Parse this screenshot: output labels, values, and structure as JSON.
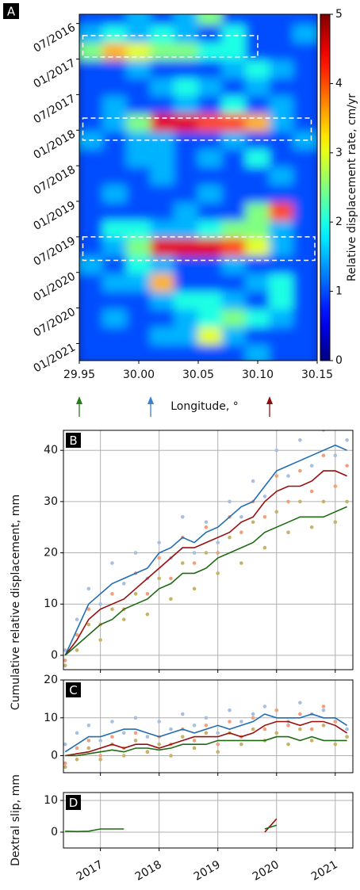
{
  "chart_data": [
    {
      "type": "heatmap",
      "panel_label": "A",
      "xlabel": "Longitude, °",
      "y_inverted": true,
      "xlim": [
        29.95,
        30.15
      ],
      "xticks": [
        29.95,
        {
          "value": 30,
          "label": "30.00"
        },
        30.05,
        {
          "value": 30.1,
          "label": "30.10"
        },
        30.15
      ],
      "ylim": [
        2016.37,
        2021.24
      ],
      "yticks": [
        {
          "value": 2016.5,
          "label": "07/2016"
        },
        {
          "value": 2017,
          "label": "01/2017"
        },
        {
          "value": 2017.5,
          "label": "07/2017"
        },
        {
          "value": 2018,
          "label": "01/2018"
        },
        {
          "value": 2018.5,
          "label": "07/2018"
        },
        {
          "value": 2019,
          "label": "01/2019"
        },
        {
          "value": 2019.5,
          "label": "07/2019"
        },
        {
          "value": 2020,
          "label": "01/2020"
        },
        {
          "value": 2020.5,
          "label": "07/2020"
        },
        {
          "value": 2021,
          "label": "01/2021"
        }
      ],
      "x": [
        29.96,
        29.98,
        30.0,
        30.02,
        30.04,
        30.06,
        30.08,
        30.1,
        30.12,
        30.14
      ],
      "y": [
        2016.4,
        2016.65,
        2016.9,
        2017.15,
        2017.4,
        2017.65,
        2017.9,
        2018.15,
        2018.4,
        2018.65,
        2018.9,
        2019.15,
        2019.4,
        2019.65,
        2019.9,
        2020.15,
        2020.4,
        2020.65,
        2020.9,
        2021.15
      ],
      "z": [
        [
          1,
          1,
          1.5,
          1,
          1.5,
          2.5,
          1,
          1,
          1,
          1
        ],
        [
          1.5,
          2,
          1.5,
          2,
          1.5,
          1,
          2,
          1,
          1,
          1.5
        ],
        [
          2.5,
          3.5,
          3,
          2.5,
          2.5,
          2,
          2,
          1,
          1,
          1
        ],
        [
          1,
          1,
          1.5,
          1,
          1,
          1,
          1.5,
          2,
          1.5,
          1
        ],
        [
          1,
          1,
          1,
          1.5,
          2,
          1.5,
          1,
          1.5,
          1,
          1
        ],
        [
          1,
          1.5,
          1,
          1,
          1.5,
          1,
          2,
          1,
          1.5,
          1
        ],
        [
          1,
          1.5,
          2.5,
          4.5,
          4.5,
          4,
          4,
          3.5,
          1.5,
          1
        ],
        [
          1.5,
          1,
          1.5,
          1.5,
          1,
          1,
          1.5,
          1,
          1,
          1.5
        ],
        [
          1,
          1,
          1.5,
          1.5,
          1,
          1.5,
          1,
          2,
          1,
          1
        ],
        [
          1,
          1,
          1,
          1.5,
          1,
          1,
          1,
          1,
          1.5,
          1
        ],
        [
          1,
          1.5,
          1,
          1,
          1,
          1.5,
          1,
          1,
          1,
          1
        ],
        [
          1,
          1,
          1,
          1,
          1.5,
          1,
          1,
          2.5,
          4,
          1
        ],
        [
          1,
          2,
          2,
          1.5,
          1.5,
          2,
          2.5,
          2.5,
          1.5,
          1
        ],
        [
          1,
          1.5,
          2.5,
          4.5,
          4.5,
          4.5,
          4,
          3,
          1.5,
          1
        ],
        [
          1.5,
          1,
          2,
          1.5,
          1,
          1,
          1.5,
          1,
          1,
          1
        ],
        [
          1,
          1.5,
          1.5,
          3.5,
          1,
          1,
          1,
          1.5,
          2,
          1
        ],
        [
          1,
          1,
          1,
          1.5,
          2,
          2,
          1.5,
          1,
          2,
          1
        ],
        [
          1,
          1.5,
          1,
          1,
          1.5,
          2,
          2.5,
          2,
          1.5,
          1
        ],
        [
          1,
          1,
          1,
          1.5,
          1.5,
          3,
          1.5,
          1,
          1,
          1
        ],
        [
          1,
          1,
          1,
          1,
          1,
          1,
          1,
          1.5,
          1,
          1
        ]
      ],
      "colorbar": {
        "label": "Relative displacement rate, cm/yr",
        "lim": [
          0,
          5
        ],
        "ticks": [
          0,
          1,
          2,
          3,
          4,
          5
        ]
      },
      "boxes": [
        {
          "xlim": [
            29.953,
            30.1
          ],
          "ylim": [
            2016.67,
            2016.97
          ]
        },
        {
          "xlim": [
            29.953,
            30.145
          ],
          "ylim": [
            2017.83,
            2018.14
          ]
        },
        {
          "xlim": [
            29.953,
            30.148
          ],
          "ylim": [
            2019.5,
            2019.83
          ]
        }
      ],
      "arrows": [
        {
          "x": 29.95,
          "color": "#2a7a1e"
        },
        {
          "x": 30.01,
          "color": "#3a7fd0"
        },
        {
          "x": 30.11,
          "color": "#8b1010"
        }
      ]
    },
    {
      "type": "line",
      "panel_label": "B",
      "ylabel": "Cumulative relative displacement, mm",
      "grid": true,
      "show_xtick_labels": false,
      "xlim": [
        2016.37,
        2021.3
      ],
      "xticks": [
        2017,
        2018,
        2019,
        2020,
        2021
      ],
      "ylim": [
        -2.8,
        43.9
      ],
      "yticks": [
        0,
        10,
        20,
        30,
        40
      ],
      "x": [
        2016.4,
        2016.6,
        2016.8,
        2017.0,
        2017.2,
        2017.4,
        2017.6,
        2017.8,
        2018.0,
        2018.2,
        2018.4,
        2018.6,
        2018.8,
        2019.0,
        2019.2,
        2019.4,
        2019.6,
        2019.8,
        2020.0,
        2020.2,
        2020.4,
        2020.6,
        2020.8,
        2021.0,
        2021.2
      ],
      "series": [
        {
          "style": "points",
          "color": "#a9bfe0",
          "values": [
            1,
            7,
            13,
            10,
            18,
            14,
            20,
            15,
            22,
            19,
            27,
            20,
            26,
            22,
            30,
            27,
            34,
            31,
            40,
            35,
            42,
            37,
            44,
            39,
            42
          ]
        },
        {
          "style": "points",
          "color": "#f2a07b",
          "values": [
            -1,
            4,
            9,
            6,
            12,
            9,
            16,
            12,
            19,
            15,
            23,
            18,
            25,
            20,
            27,
            24,
            30,
            27,
            35,
            30,
            36,
            32,
            39,
            33,
            37
          ]
        },
        {
          "style": "points",
          "color": "#c8b26a",
          "values": [
            -2,
            1,
            6,
            3,
            9,
            7,
            12,
            8,
            15,
            11,
            18,
            13,
            20,
            16,
            23,
            18,
            26,
            21,
            28,
            24,
            30,
            25,
            30,
            26,
            30
          ]
        },
        {
          "style": "line",
          "color": "#1f6db5",
          "values": [
            0,
            5,
            10,
            12,
            14,
            15,
            16,
            17,
            20,
            21,
            23,
            22,
            24,
            25,
            27,
            29,
            30,
            33,
            36,
            37,
            38,
            39,
            40,
            41,
            40
          ]
        },
        {
          "style": "line",
          "color": "#9b0d0d",
          "values": [
            0,
            3,
            7,
            9,
            10,
            11,
            13,
            15,
            17,
            19,
            21,
            21,
            22,
            23,
            24,
            26,
            27,
            30,
            32,
            33,
            33,
            34,
            36,
            36,
            35
          ]
        },
        {
          "style": "line",
          "color": "#1e6b14",
          "values": [
            0,
            2,
            4,
            6,
            7,
            9,
            10,
            11,
            13,
            14,
            16,
            16,
            17,
            19,
            20,
            21,
            22,
            24,
            25,
            26,
            27,
            27,
            27,
            28,
            29
          ]
        }
      ]
    },
    {
      "type": "line",
      "panel_label": "C",
      "grid": true,
      "show_xtick_labels": false,
      "xlim": [
        2016.37,
        2021.3
      ],
      "xticks": [
        2017,
        2018,
        2019,
        2020,
        2021
      ],
      "ylim": [
        -4.5,
        20
      ],
      "yticks": [
        0,
        10,
        20
      ],
      "x": [
        2016.4,
        2016.6,
        2016.8,
        2017.0,
        2017.2,
        2017.4,
        2017.6,
        2017.8,
        2018.0,
        2018.2,
        2018.4,
        2018.6,
        2018.8,
        2019.0,
        2019.2,
        2019.4,
        2019.6,
        2019.8,
        2020.0,
        2020.2,
        2020.4,
        2020.6,
        2020.8,
        2021.0,
        2021.2
      ],
      "series": [
        {
          "style": "points",
          "color": "#a9bfe0",
          "values": [
            3,
            6,
            8,
            4,
            9,
            6,
            10,
            5,
            9,
            7,
            11,
            8,
            10,
            6,
            12,
            9,
            11,
            13,
            12,
            9,
            14,
            11,
            12,
            9,
            7
          ]
        },
        {
          "style": "points",
          "color": "#f2a07b",
          "values": [
            -2,
            2,
            4,
            0,
            5,
            2,
            6,
            1,
            5,
            3,
            7,
            4,
            8,
            3,
            9,
            5,
            10,
            7,
            12,
            8,
            11,
            7,
            13,
            9,
            5
          ]
        },
        {
          "style": "points",
          "color": "#c8b26a",
          "values": [
            -3,
            -1,
            2,
            -1,
            3,
            0,
            4,
            1,
            3,
            0,
            5,
            2,
            6,
            1,
            6,
            3,
            7,
            4,
            6,
            3,
            7,
            4,
            8,
            3,
            5
          ]
        },
        {
          "style": "line",
          "color": "#1f6db5",
          "values": [
            1,
            3,
            5,
            5,
            6,
            7,
            7,
            6,
            5,
            6,
            7,
            6,
            7,
            8,
            7,
            8,
            9,
            11,
            10,
            10,
            10,
            11,
            10,
            10,
            8
          ]
        },
        {
          "style": "line",
          "color": "#9b0d0d",
          "values": [
            0,
            0.5,
            1,
            2,
            3,
            2,
            3,
            3,
            2,
            3,
            4,
            5,
            5,
            5,
            6,
            5,
            6,
            8,
            9,
            9,
            8,
            9,
            9,
            8,
            6
          ]
        },
        {
          "style": "line",
          "color": "#1e6b14",
          "values": [
            0,
            0,
            0.5,
            1,
            1.5,
            1,
            2,
            2,
            1.5,
            2,
            3,
            3,
            3,
            4,
            4,
            4,
            4,
            4,
            5,
            5,
            4,
            5,
            4,
            4,
            4
          ]
        }
      ]
    },
    {
      "type": "line",
      "panel_label": "D",
      "ylabel": "Dextral slip, mm",
      "grid": true,
      "show_xtick_labels": true,
      "xlim": [
        2016.37,
        2021.3
      ],
      "xticks": [
        2017,
        2018,
        2019,
        2020,
        2021
      ],
      "ylim": [
        -5,
        12.5
      ],
      "yticks": [
        0,
        10
      ],
      "x": [
        2016.4,
        2016.6,
        2016.8,
        2017.0,
        2017.2,
        2017.4,
        2017.6,
        2017.8,
        2018.0,
        2018.2,
        2018.4,
        2018.6,
        2018.8,
        2019.0,
        2019.2,
        2019.4,
        2019.6,
        2019.8,
        2020.0,
        2020.2,
        2020.4,
        2020.6,
        2020.8,
        2021.0,
        2021.2
      ],
      "series": [
        {
          "style": "line",
          "color": "#9b0d0d",
          "values": [
            null,
            null,
            null,
            null,
            null,
            null,
            null,
            null,
            null,
            null,
            null,
            null,
            null,
            null,
            null,
            null,
            null,
            0,
            4.2,
            null,
            null,
            null,
            null,
            null,
            null
          ]
        },
        {
          "style": "line",
          "color": "#1e6b14",
          "values": [
            0.3,
            0.2,
            0.3,
            1,
            1,
            1,
            null,
            null,
            null,
            null,
            null,
            null,
            null,
            null,
            null,
            null,
            null,
            1,
            2.2,
            null,
            null,
            null,
            null,
            null,
            null
          ]
        }
      ]
    }
  ]
}
